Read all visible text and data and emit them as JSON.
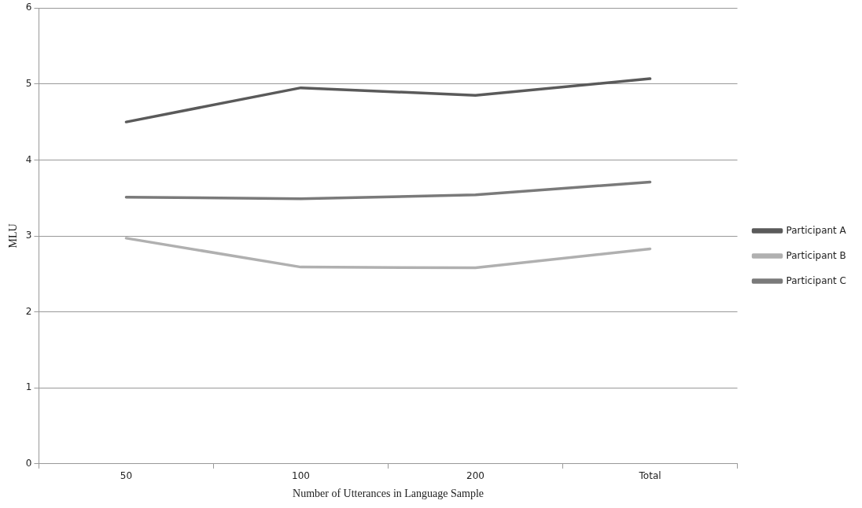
{
  "chart_data": {
    "type": "line",
    "xlabel": "Number of Utterances in Language Sample",
    "ylabel": "MLU",
    "categories": [
      "50",
      "100",
      "200",
      "Total"
    ],
    "series": [
      {
        "name": "Participant A",
        "color": "#5a5a5a",
        "values": [
          4.5,
          4.95,
          4.85,
          5.07
        ]
      },
      {
        "name": "Participant B",
        "color": "#b0b0b0",
        "values": [
          2.97,
          2.59,
          2.58,
          2.83
        ]
      },
      {
        "name": "Participant C",
        "color": "#7a7a7a",
        "values": [
          3.51,
          3.49,
          3.54,
          3.71
        ]
      }
    ],
    "ylim": [
      0,
      6
    ],
    "yticks": [
      0,
      1,
      2,
      3,
      4,
      5,
      6
    ],
    "grid": "y",
    "legend": "right",
    "marker": "none",
    "line_style": "solid"
  }
}
